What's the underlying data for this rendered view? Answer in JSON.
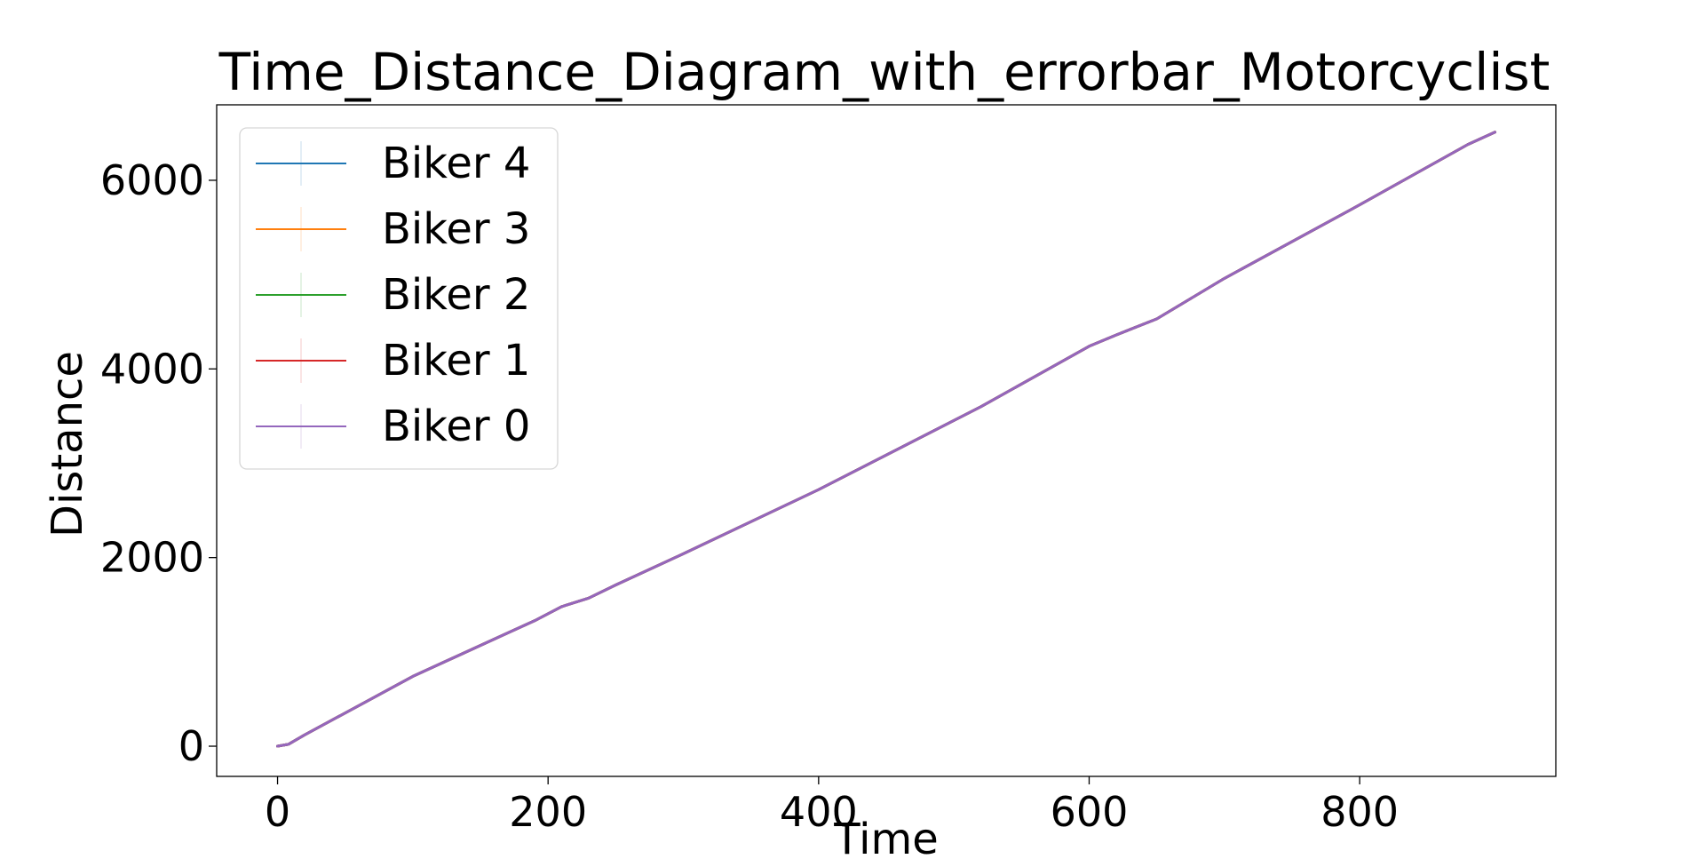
{
  "chart_data": {
    "type": "line",
    "title": "Time_Distance_Diagram_with_errorbar_Motorcyclist",
    "xlabel": "Time",
    "ylabel": "Distance",
    "xlim": [
      -45,
      945
    ],
    "ylim": [
      -320,
      6800
    ],
    "x_ticks": [
      0,
      200,
      400,
      600,
      800
    ],
    "y_ticks": [
      0,
      2000,
      4000,
      6000
    ],
    "x_tick_labels": [
      "0",
      "200",
      "400",
      "600",
      "800"
    ],
    "y_tick_labels": [
      "0",
      "2000",
      "4000",
      "6000"
    ],
    "grid": false,
    "legend_position": "top-left",
    "series": [
      {
        "name": "Biker 4",
        "color": "#1f77b4",
        "x": [
          0,
          8,
          20,
          60,
          100,
          170,
          190,
          210,
          230,
          250,
          300,
          400,
          520,
          570,
          600,
          620,
          650,
          700,
          800,
          880,
          900
        ],
        "y": [
          0,
          20,
          120,
          430,
          740,
          1200,
          1330,
          1480,
          1570,
          1710,
          2040,
          2720,
          3600,
          4000,
          4240,
          4360,
          4530,
          4960,
          5740,
          6380,
          6510
        ]
      },
      {
        "name": "Biker 3",
        "color": "#ff7f0e",
        "x": [
          0,
          8,
          20,
          60,
          100,
          170,
          190,
          210,
          230,
          250,
          300,
          400,
          520,
          570,
          600,
          620,
          650,
          700,
          800,
          880,
          900
        ],
        "y": [
          0,
          20,
          120,
          430,
          740,
          1200,
          1330,
          1480,
          1570,
          1710,
          2040,
          2720,
          3600,
          4000,
          4240,
          4360,
          4530,
          4960,
          5740,
          6380,
          6510
        ]
      },
      {
        "name": "Biker 2",
        "color": "#2ca02c",
        "x": [
          0,
          8,
          20,
          60,
          100,
          170,
          190,
          210,
          230,
          250,
          300,
          400,
          520,
          570,
          600,
          620,
          650,
          700,
          800,
          880,
          900
        ],
        "y": [
          0,
          20,
          120,
          430,
          740,
          1200,
          1330,
          1480,
          1570,
          1710,
          2040,
          2720,
          3600,
          4000,
          4240,
          4360,
          4530,
          4960,
          5740,
          6380,
          6510
        ]
      },
      {
        "name": "Biker 1",
        "color": "#d62728",
        "x": [
          0,
          8,
          20,
          60,
          100,
          170,
          190,
          210,
          230,
          250,
          300,
          400,
          520,
          570,
          600,
          620,
          650,
          700,
          800,
          880,
          900
        ],
        "y": [
          0,
          20,
          120,
          430,
          740,
          1200,
          1330,
          1480,
          1570,
          1710,
          2040,
          2720,
          3600,
          4000,
          4240,
          4360,
          4530,
          4960,
          5740,
          6380,
          6510
        ]
      },
      {
        "name": "Biker 0",
        "color": "#9467bd",
        "x": [
          0,
          8,
          20,
          60,
          100,
          170,
          190,
          210,
          230,
          250,
          300,
          400,
          520,
          570,
          600,
          620,
          650,
          700,
          800,
          880,
          900
        ],
        "y": [
          0,
          20,
          120,
          430,
          740,
          1200,
          1330,
          1480,
          1570,
          1710,
          2040,
          2720,
          3600,
          4000,
          4240,
          4360,
          4530,
          4960,
          5740,
          6380,
          6510
        ]
      }
    ]
  }
}
